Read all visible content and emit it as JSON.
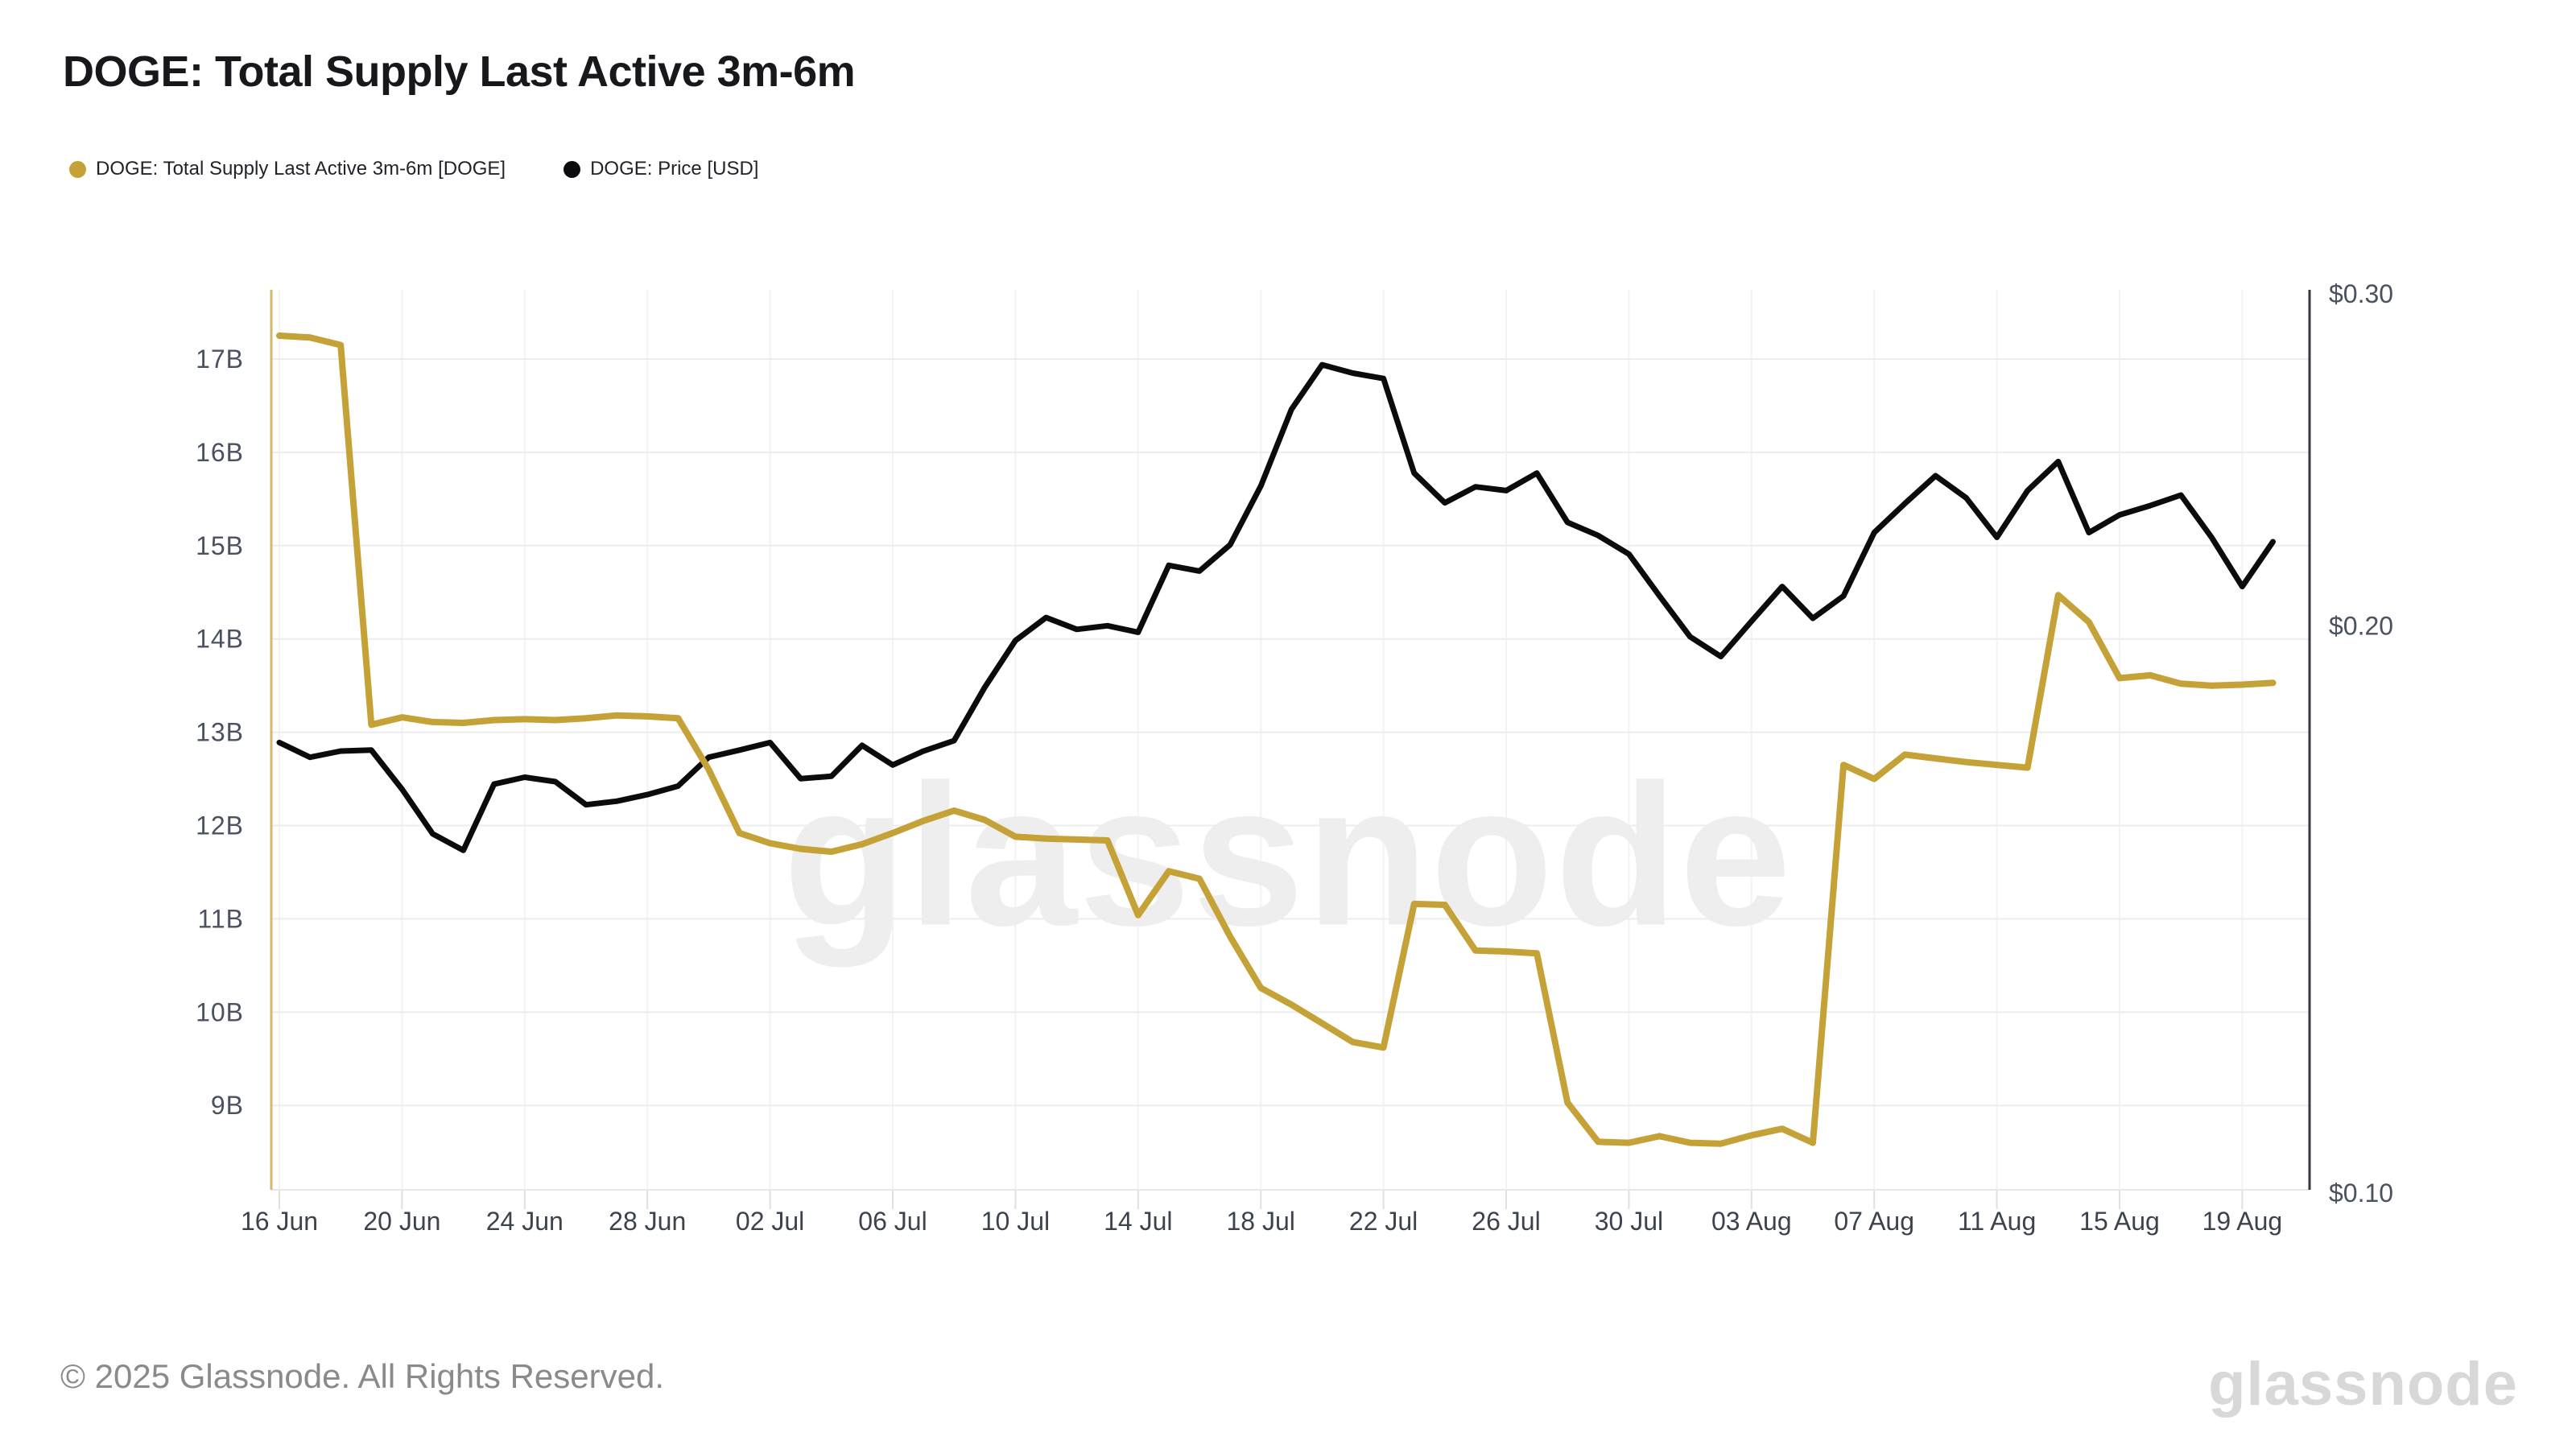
{
  "header": {
    "title": "DOGE: Total Supply Last Active 3m-6m"
  },
  "legend": {
    "items": [
      {
        "label": "DOGE: Total Supply Last Active 3m-6m [DOGE]",
        "color": "#c5a237"
      },
      {
        "label": "DOGE: Price [USD]",
        "color": "#0b0b0d"
      }
    ]
  },
  "watermark": {
    "text": "glassnode"
  },
  "footer": {
    "copyright": "© 2025 Glassnode. All Rights Reserved.",
    "brand": "glassnode"
  },
  "chart_data": {
    "type": "line",
    "title": "DOGE: Total Supply Last Active 3m-6m",
    "x_unit": "date",
    "x": [
      "16 Jun",
      "17 Jun",
      "18 Jun",
      "19 Jun",
      "20 Jun",
      "21 Jun",
      "22 Jun",
      "23 Jun",
      "24 Jun",
      "25 Jun",
      "26 Jun",
      "27 Jun",
      "28 Jun",
      "29 Jun",
      "30 Jun",
      "01 Jul",
      "02 Jul",
      "03 Jul",
      "04 Jul",
      "05 Jul",
      "06 Jul",
      "07 Jul",
      "08 Jul",
      "09 Jul",
      "10 Jul",
      "11 Jul",
      "12 Jul",
      "13 Jul",
      "14 Jul",
      "15 Jul",
      "16 Jul",
      "17 Jul",
      "18 Jul",
      "19 Jul",
      "20 Jul",
      "21 Jul",
      "22 Jul",
      "23 Jul",
      "24 Jul",
      "25 Jul",
      "26 Jul",
      "27 Jul",
      "28 Jul",
      "29 Jul",
      "30 Jul",
      "31 Jul",
      "01 Aug",
      "02 Aug",
      "03 Aug",
      "04 Aug",
      "05 Aug",
      "06 Aug",
      "07 Aug",
      "08 Aug",
      "09 Aug",
      "10 Aug",
      "11 Aug",
      "12 Aug",
      "13 Aug",
      "14 Aug",
      "15 Aug",
      "16 Aug",
      "17 Aug",
      "18 Aug",
      "19 Aug",
      "20 Aug"
    ],
    "x_tick_labels": [
      "16 Jun",
      "20 Jun",
      "24 Jun",
      "28 Jun",
      "02 Jul",
      "06 Jul",
      "10 Jul",
      "14 Jul",
      "18 Jul",
      "22 Jul",
      "26 Jul",
      "30 Jul",
      "03 Aug",
      "07 Aug",
      "11 Aug",
      "15 Aug",
      "19 Aug"
    ],
    "x_tick_day_indices": [
      0,
      4,
      8,
      12,
      16,
      20,
      24,
      28,
      32,
      36,
      40,
      44,
      48,
      52,
      56,
      60,
      64
    ],
    "left_axis": {
      "scale": "linear",
      "unit": "B DOGE",
      "tick_labels": [
        "17B",
        "16B",
        "15B",
        "14B",
        "13B",
        "12B",
        "11B",
        "10B",
        "9B"
      ],
      "tick_values": [
        17,
        16,
        15,
        14,
        13,
        12,
        11,
        10,
        9
      ],
      "axis_color": "#c5a237"
    },
    "right_axis": {
      "scale": "log",
      "unit": "USD",
      "tick_labels": [
        "$0.30",
        "$0.20",
        "$0.10"
      ],
      "tick_values": [
        0.3,
        0.2,
        0.1
      ],
      "axis_color": "#343843"
    },
    "grid": {
      "horizontal": true,
      "vertical": true
    },
    "legend_position": "top-left",
    "series": [
      {
        "name": "DOGE: Total Supply Last Active 3m-6m [DOGE]",
        "axis": "left",
        "unit": "billions",
        "color": "#c5a237",
        "stroke_width": 8,
        "values": [
          17.25,
          17.23,
          17.15,
          13.08,
          13.16,
          13.11,
          13.1,
          13.13,
          13.14,
          13.13,
          13.15,
          13.18,
          13.17,
          13.15,
          12.6,
          11.92,
          11.81,
          11.75,
          11.72,
          11.8,
          11.92,
          12.05,
          12.16,
          12.06,
          11.88,
          11.86,
          11.85,
          11.84,
          11.04,
          11.51,
          11.43,
          10.81,
          10.26,
          10.08,
          9.88,
          9.68,
          9.62,
          11.16,
          11.15,
          10.66,
          10.65,
          10.63,
          9.03,
          8.61,
          8.6,
          8.67,
          8.6,
          8.59,
          8.68,
          8.75,
          8.6,
          12.65,
          12.5,
          12.76,
          12.72,
          12.68,
          12.65,
          12.62,
          14.47,
          14.18,
          13.58,
          13.61,
          13.52,
          13.5,
          13.51,
          13.53
        ]
      },
      {
        "name": "DOGE: Price [USD]",
        "axis": "right",
        "unit": "USD",
        "color": "#0b0b0d",
        "stroke_width": 7,
        "values": [
          0.1734,
          0.1703,
          0.1716,
          0.1718,
          0.1638,
          0.1551,
          0.152,
          0.1648,
          0.1662,
          0.1653,
          0.1607,
          0.1614,
          0.1627,
          0.1644,
          0.1703,
          0.1718,
          0.1734,
          0.1659,
          0.1664,
          0.1728,
          0.1687,
          0.1716,
          0.1738,
          0.1855,
          0.1964,
          0.202,
          0.1991,
          0.2,
          0.1984,
          0.2153,
          0.2138,
          0.2208,
          0.2372,
          0.2605,
          0.2751,
          0.2723,
          0.2705,
          0.241,
          0.2324,
          0.237,
          0.2359,
          0.241,
          0.2269,
          0.2233,
          0.2183,
          0.2074,
          0.1973,
          0.1926,
          0.2011,
          0.2098,
          0.2018,
          0.2074,
          0.2241,
          0.2322,
          0.2402,
          0.2338,
          0.2228,
          0.2359,
          0.2444,
          0.2241,
          0.229,
          0.2316,
          0.2346,
          0.2228,
          0.2098,
          0.2216
        ]
      }
    ]
  }
}
